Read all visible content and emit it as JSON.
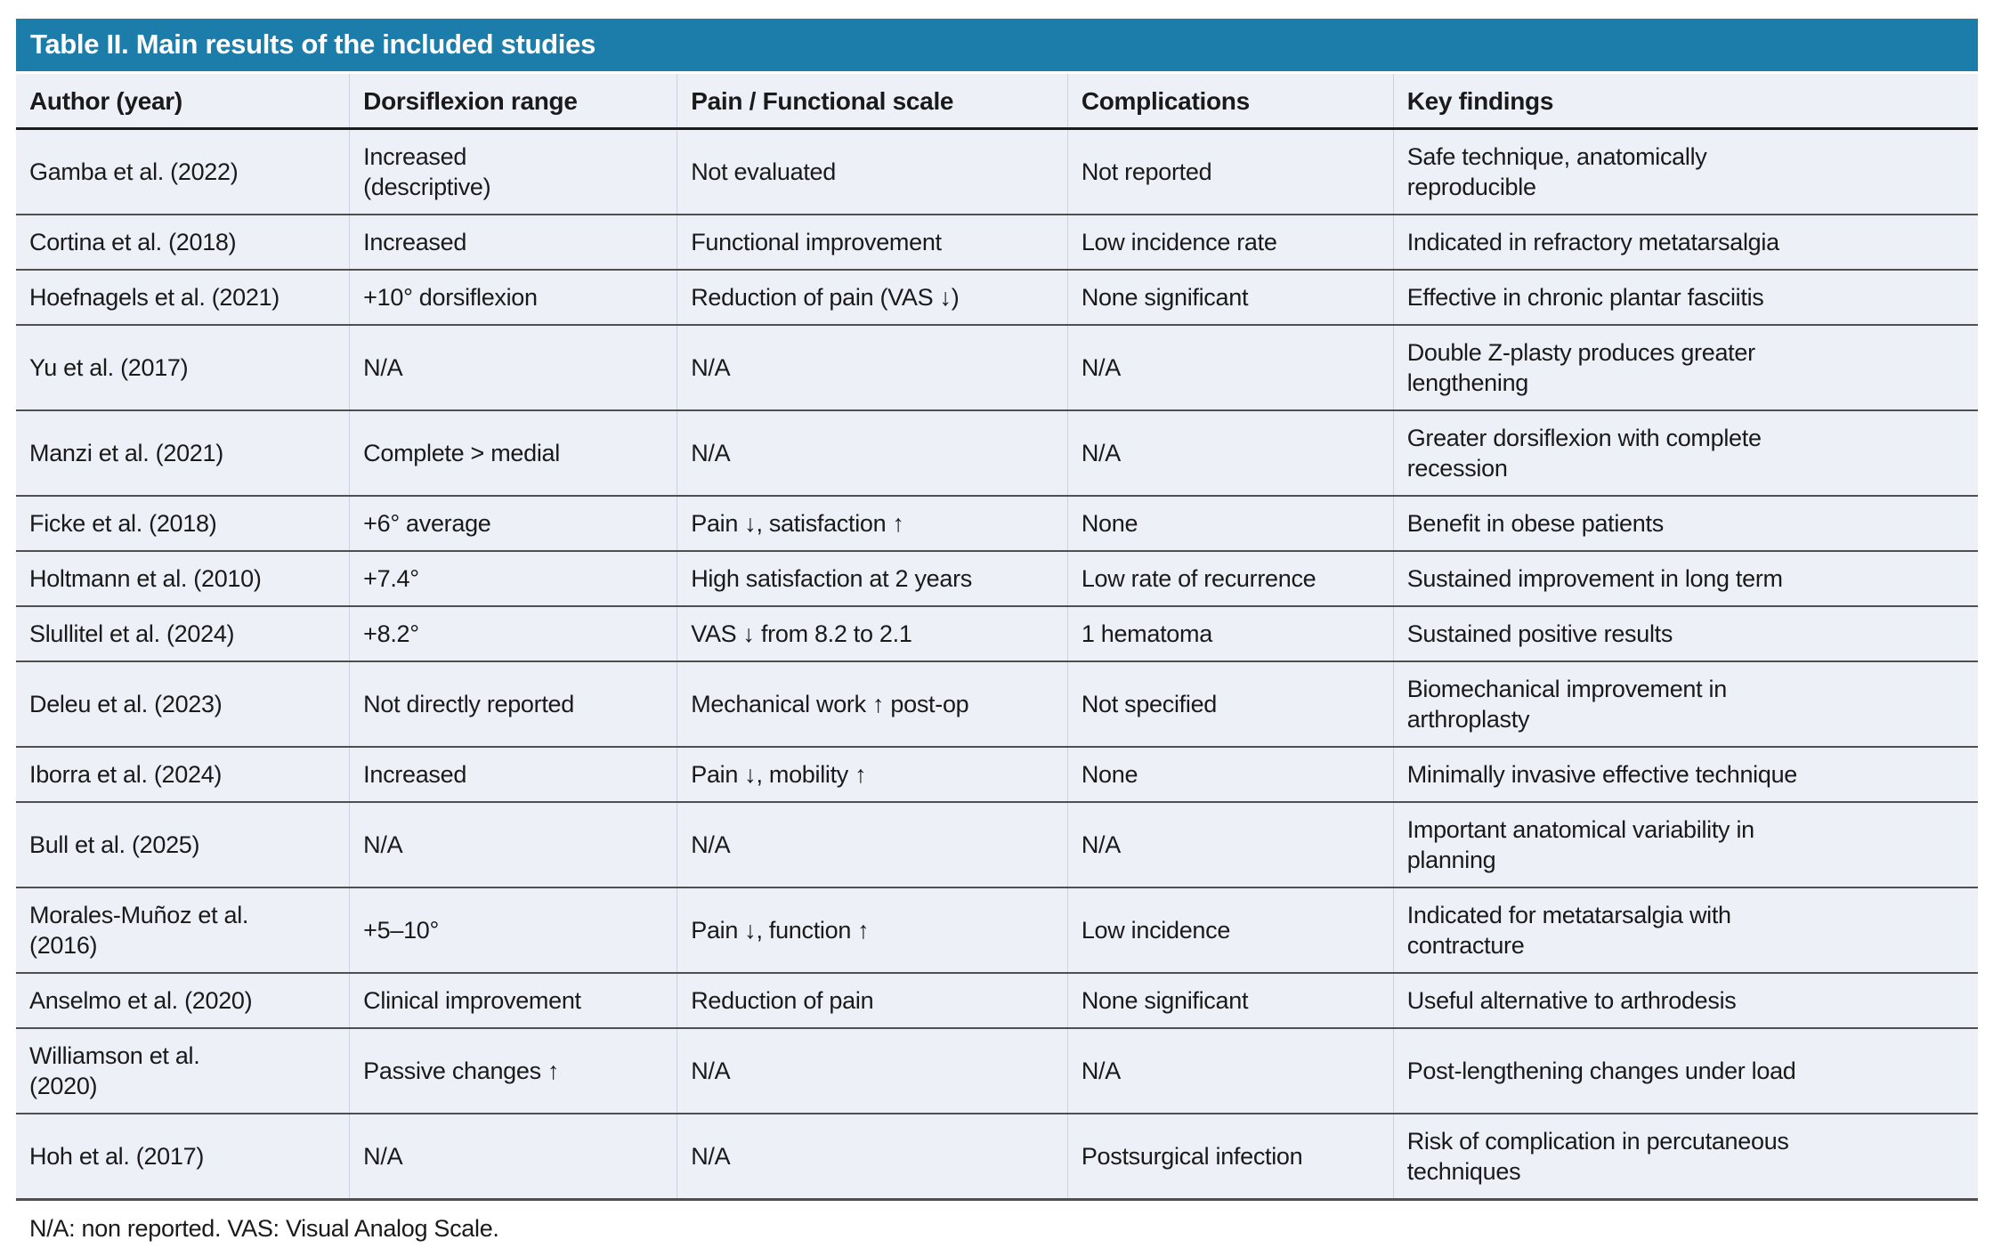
{
  "table": {
    "title": "Table II. Main results of the included studies",
    "columns": [
      "Author (year)",
      "Dorsiflexion range",
      "Pain / Functional scale",
      "Complications",
      "Key findings"
    ],
    "rows": [
      [
        "Gamba et al. (2022)",
        "Increased\n(descriptive)",
        "Not evaluated",
        "Not reported",
        "Safe technique, anatomically\nreproducible"
      ],
      [
        "Cortina et al. (2018)",
        "Increased",
        "Functional improvement",
        "Low incidence rate",
        "Indicated in refractory metatarsalgia"
      ],
      [
        "Hoefnagels et al. (2021)",
        "+10° dorsiflexion",
        "Reduction of pain (VAS ↓)",
        "None significant",
        "Effective in chronic plantar fasciitis"
      ],
      [
        "Yu et al. (2017)",
        "N/A",
        "N/A",
        "N/A",
        "Double Z-plasty produces greater\nlengthening"
      ],
      [
        "Manzi et al. (2021)",
        "Complete > medial",
        "N/A",
        "N/A",
        "Greater dorsiflexion with complete\nrecession"
      ],
      [
        "Ficke et al. (2018)",
        "+6° average",
        "Pain ↓, satisfaction ↑",
        "None",
        "Benefit in obese patients"
      ],
      [
        "Holtmann et al. (2010)",
        "+7.4°",
        "High satisfaction at 2 years",
        "Low rate of recurrence",
        "Sustained improvement in long term"
      ],
      [
        "Slullitel et al. (2024)",
        "+8.2°",
        "VAS ↓ from 8.2 to 2.1",
        "1 hematoma",
        "Sustained positive results"
      ],
      [
        "Deleu et al. (2023)",
        "Not directly reported",
        "Mechanical work ↑ post-op",
        "Not specified",
        "Biomechanical improvement in\narthroplasty"
      ],
      [
        "Iborra et al. (2024)",
        "Increased",
        "Pain ↓, mobility ↑",
        "None",
        "Minimally invasive effective technique"
      ],
      [
        "Bull et al. (2025)",
        "N/A",
        "N/A",
        "N/A",
        "Important anatomical variability in\nplanning"
      ],
      [
        "Morales-Muñoz et al.\n(2016)",
        "+5–10°",
        "Pain ↓, function ↑",
        "Low incidence",
        "Indicated for metatarsalgia with\ncontracture"
      ],
      [
        "Anselmo et al. (2020)",
        "Clinical improvement",
        "Reduction of pain",
        "None significant",
        "Useful alternative to arthrodesis"
      ],
      [
        "Williamson et al.\n(2020)",
        "Passive changes ↑",
        "N/A",
        "N/A",
        "Post-lengthening changes under load"
      ],
      [
        "Hoh et al. (2017)",
        "N/A",
        "N/A",
        "Postsurgical infection",
        "Risk of complication in percutaneous\ntechniques"
      ]
    ],
    "footnote": "N/A: non reported. VAS: Visual Analog Scale.",
    "colors": {
      "title_bg": "#1d7daa",
      "title_text": "#ffffff",
      "row_bg": "#edf0f7",
      "rule": "#4f4f4f"
    }
  }
}
